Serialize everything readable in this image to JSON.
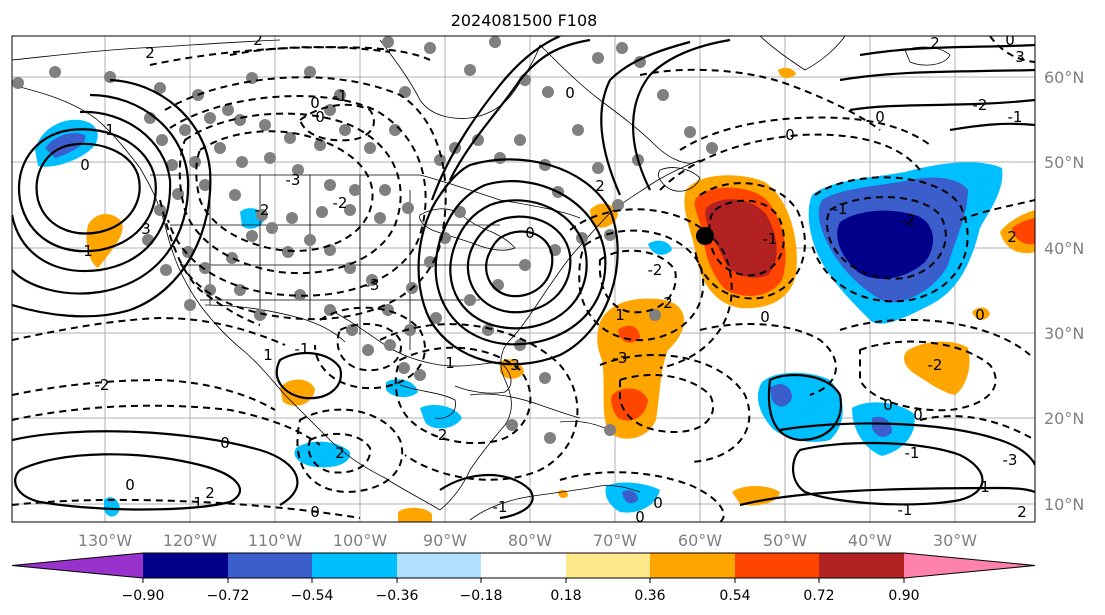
{
  "title": "2024081500 F108",
  "lon_ticks": [
    "130°W",
    "120°W",
    "110°W",
    "100°W",
    "90°W",
    "80°W",
    "70°W",
    "60°W",
    "50°W",
    "40°W",
    "30°W"
  ],
  "lat_ticks": [
    "60°N",
    "50°N",
    "40°N",
    "30°N",
    "20°N",
    "10°N"
  ],
  "colorbar": {
    "labels": [
      "−0.90",
      "−0.72",
      "−0.54",
      "−0.36",
      "−0.18",
      "0.18",
      "0.36",
      "0.54",
      "0.72",
      "0.90"
    ],
    "colors": [
      "#9932cc",
      "#00008b",
      "#3a5fcd",
      "#00bfff",
      "#b0e2ff",
      "#ffffff",
      "#ffe88a",
      "#ffa500",
      "#ff4500",
      "#b22222",
      "#ff82ab"
    ]
  },
  "contour_labels": [
    "2",
    "2",
    "0",
    "0",
    "-1",
    "0",
    "0",
    "0",
    "0",
    "-1",
    "-2",
    "0",
    "1",
    "1",
    "3",
    "-3",
    "-2",
    "-3",
    "-2",
    "0",
    "2",
    "-1",
    "-2",
    "2",
    "1",
    "0",
    "-1",
    "-2",
    "2",
    "0",
    "1",
    "-1",
    "-2",
    "2",
    "1",
    "3",
    "-3",
    "-2",
    "0",
    "-1",
    "-3",
    "0",
    "1",
    "-1",
    "2",
    "1",
    "0",
    "2",
    "0",
    "0",
    "-1",
    "-2",
    "3",
    "2",
    "0",
    "0"
  ],
  "colors": {
    "blue_light": "#00bfff",
    "blue_mid": "#3a5fcd",
    "navy": "#00008b",
    "orange": "#ffa500",
    "red_orange": "#ff4500",
    "dark_red": "#b22222",
    "station": "#808080"
  }
}
